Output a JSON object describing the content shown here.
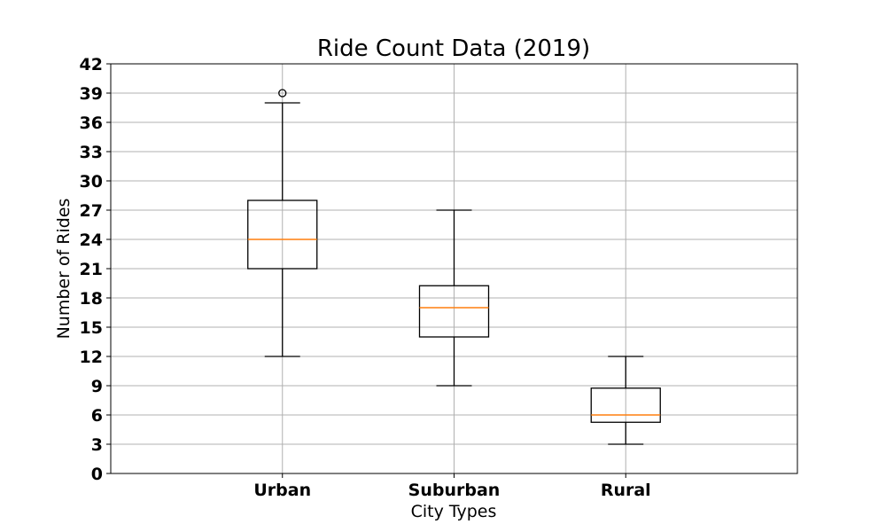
{
  "chart_data": {
    "type": "box",
    "title": "Ride Count Data (2019)",
    "xlabel": "City Types",
    "ylabel": "Number of Rides",
    "ylim": [
      0,
      42
    ],
    "yticks": [
      0,
      3,
      6,
      9,
      12,
      15,
      18,
      21,
      24,
      27,
      30,
      33,
      36,
      39,
      42
    ],
    "grid": true,
    "categories": [
      "Urban",
      "Suburban",
      "Rural"
    ],
    "boxes": [
      {
        "category": "Urban",
        "whisker_low": 12,
        "q1": 21,
        "median": 24,
        "q3": 28,
        "whisker_high": 38,
        "outliers": [
          39
        ]
      },
      {
        "category": "Suburban",
        "whisker_low": 9,
        "q1": 14,
        "median": 17,
        "q3": 19.25,
        "whisker_high": 27,
        "outliers": []
      },
      {
        "category": "Rural",
        "whisker_low": 3,
        "q1": 5.25,
        "median": 6,
        "q3": 8.75,
        "whisker_high": 12,
        "outliers": []
      }
    ],
    "colors": {
      "box": "#000000",
      "median": "#ff7f0e",
      "grid": "#b0b0b0"
    }
  }
}
